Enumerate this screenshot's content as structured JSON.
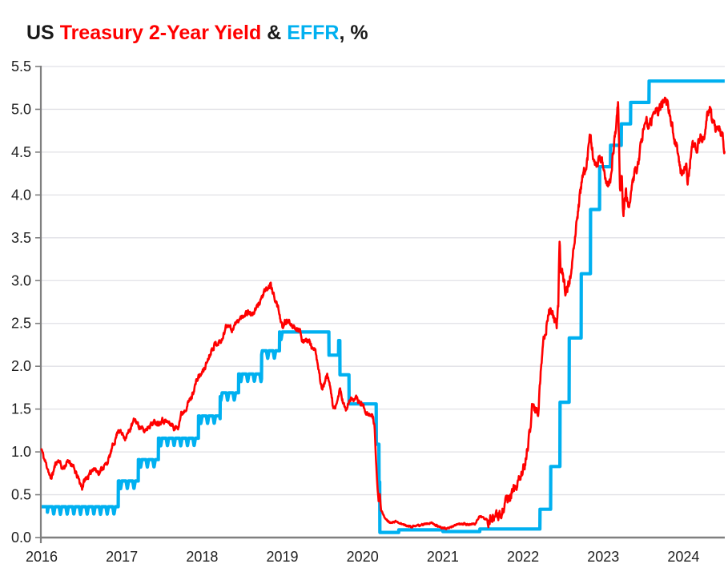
{
  "title": {
    "segments": [
      {
        "text": "US ",
        "color": "#1a1a1a"
      },
      {
        "text": "Treasury 2-Year Yield ",
        "color": "#ff0000"
      },
      {
        "text": "& ",
        "color": "#1a1a1a"
      },
      {
        "text": "EFFR",
        "color": "#00b0f0"
      },
      {
        "text": ", %",
        "color": "#1a1a1a"
      }
    ]
  },
  "colors": {
    "treasury_line": "#ff0000",
    "effr_line": "#00b0f0",
    "gridline": "#e1e1e6",
    "axis": "#7f7f7f",
    "tick_text": "#1f1f1f",
    "background": "#ffffff"
  },
  "chart_data": {
    "type": "line",
    "title": "US Treasury 2-Year Yield & EFFR, %",
    "xlabel": "",
    "ylabel": "%",
    "xlim": [
      2016,
      2024.515
    ],
    "ylim": [
      0,
      5.5
    ],
    "grid": "horizontal",
    "legend_position": "colored-words-in-title",
    "x_tick_labels": [
      "2016",
      "2017",
      "2018",
      "2019",
      "2020",
      "2021",
      "2022",
      "2023",
      "2024"
    ],
    "x_tick_values": [
      2016,
      2017,
      2018,
      2019,
      2020,
      2021,
      2022,
      2023,
      2024
    ],
    "y_tick_labels": [
      "0.0",
      "0.5",
      "1.0",
      "1.5",
      "2.0",
      "2.5",
      "3.0",
      "3.5",
      "4.0",
      "4.5",
      "5.0",
      "5.5"
    ],
    "y_tick_values": [
      0,
      0.5,
      1.0,
      1.5,
      2.0,
      2.5,
      3.0,
      3.5,
      4.0,
      4.5,
      5.0,
      5.5
    ],
    "series": [
      {
        "name": "US Treasury 2-Year Yield",
        "color": "#ff0000",
        "line_width": 2.6,
        "style": "daily-jagged",
        "noise": {
          "seed": 11,
          "smooth": 0.55,
          "step": 0.004,
          "regions": [
            [
              2016.0,
              2020.14,
              0.05
            ],
            [
              2020.14,
              2021.55,
              0.016
            ],
            [
              2021.55,
              2024.6,
              0.1
            ]
          ]
        },
        "points": [
          [
            2016.0,
            1.03
          ],
          [
            2016.03,
            0.92
          ],
          [
            2016.08,
            0.8
          ],
          [
            2016.11,
            0.68
          ],
          [
            2016.14,
            0.75
          ],
          [
            2016.18,
            0.88
          ],
          [
            2016.22,
            0.9
          ],
          [
            2016.26,
            0.8
          ],
          [
            2016.3,
            0.85
          ],
          [
            2016.34,
            0.9
          ],
          [
            2016.38,
            0.85
          ],
          [
            2016.42,
            0.76
          ],
          [
            2016.46,
            0.68
          ],
          [
            2016.505,
            0.58
          ],
          [
            2016.53,
            0.66
          ],
          [
            2016.56,
            0.7
          ],
          [
            2016.6,
            0.73
          ],
          [
            2016.64,
            0.82
          ],
          [
            2016.68,
            0.78
          ],
          [
            2016.72,
            0.76
          ],
          [
            2016.76,
            0.82
          ],
          [
            2016.8,
            0.85
          ],
          [
            2016.84,
            0.92
          ],
          [
            2016.88,
            1.05
          ],
          [
            2016.92,
            1.15
          ],
          [
            2016.955,
            1.27
          ],
          [
            2017.0,
            1.21
          ],
          [
            2017.04,
            1.17
          ],
          [
            2017.08,
            1.22
          ],
          [
            2017.12,
            1.3
          ],
          [
            2017.16,
            1.38
          ],
          [
            2017.2,
            1.32
          ],
          [
            2017.24,
            1.28
          ],
          [
            2017.28,
            1.24
          ],
          [
            2017.33,
            1.3
          ],
          [
            2017.37,
            1.33
          ],
          [
            2017.42,
            1.35
          ],
          [
            2017.46,
            1.34
          ],
          [
            2017.5,
            1.38
          ],
          [
            2017.54,
            1.36
          ],
          [
            2017.58,
            1.34
          ],
          [
            2017.62,
            1.32
          ],
          [
            2017.66,
            1.27
          ],
          [
            2017.7,
            1.3
          ],
          [
            2017.74,
            1.44
          ],
          [
            2017.79,
            1.5
          ],
          [
            2017.83,
            1.58
          ],
          [
            2017.87,
            1.64
          ],
          [
            2017.92,
            1.8
          ],
          [
            2017.96,
            1.88
          ],
          [
            2018.0,
            1.92
          ],
          [
            2018.04,
            2.0
          ],
          [
            2018.08,
            2.1
          ],
          [
            2018.12,
            2.2
          ],
          [
            2018.16,
            2.26
          ],
          [
            2018.21,
            2.28
          ],
          [
            2018.25,
            2.3
          ],
          [
            2018.29,
            2.45
          ],
          [
            2018.33,
            2.5
          ],
          [
            2018.37,
            2.42
          ],
          [
            2018.42,
            2.5
          ],
          [
            2018.46,
            2.54
          ],
          [
            2018.5,
            2.58
          ],
          [
            2018.54,
            2.62
          ],
          [
            2018.58,
            2.64
          ],
          [
            2018.62,
            2.6
          ],
          [
            2018.67,
            2.66
          ],
          [
            2018.71,
            2.74
          ],
          [
            2018.75,
            2.82
          ],
          [
            2018.79,
            2.88
          ],
          [
            2018.835,
            2.92
          ],
          [
            2018.85,
            2.97
          ],
          [
            2018.88,
            2.86
          ],
          [
            2018.92,
            2.76
          ],
          [
            2018.96,
            2.64
          ],
          [
            2019.005,
            2.42
          ],
          [
            2019.03,
            2.52
          ],
          [
            2019.08,
            2.52
          ],
          [
            2019.13,
            2.48
          ],
          [
            2019.17,
            2.45
          ],
          [
            2019.22,
            2.42
          ],
          [
            2019.24,
            2.28
          ],
          [
            2019.28,
            2.32
          ],
          [
            2019.33,
            2.3
          ],
          [
            2019.37,
            2.22
          ],
          [
            2019.42,
            2.15
          ],
          [
            2019.45,
            1.95
          ],
          [
            2019.5,
            1.72
          ],
          [
            2019.53,
            1.82
          ],
          [
            2019.56,
            1.88
          ],
          [
            2019.6,
            1.74
          ],
          [
            2019.63,
            1.55
          ],
          [
            2019.66,
            1.48
          ],
          [
            2019.7,
            1.65
          ],
          [
            2019.715,
            1.75
          ],
          [
            2019.75,
            1.6
          ],
          [
            2019.79,
            1.48
          ],
          [
            2019.83,
            1.58
          ],
          [
            2019.87,
            1.63
          ],
          [
            2019.92,
            1.62
          ],
          [
            2019.96,
            1.58
          ],
          [
            2020.0,
            1.55
          ],
          [
            2020.04,
            1.48
          ],
          [
            2020.09,
            1.43
          ],
          [
            2020.13,
            1.4
          ],
          [
            2020.15,
            1.32
          ],
          [
            2020.165,
            0.95
          ],
          [
            2020.185,
            0.6
          ],
          [
            2020.2,
            0.42
          ],
          [
            2020.215,
            0.52
          ],
          [
            2020.23,
            0.32
          ],
          [
            2020.27,
            0.24
          ],
          [
            2020.31,
            0.2
          ],
          [
            2020.36,
            0.17
          ],
          [
            2020.42,
            0.19
          ],
          [
            2020.48,
            0.16
          ],
          [
            2020.54,
            0.14
          ],
          [
            2020.6,
            0.13
          ],
          [
            2020.67,
            0.13
          ],
          [
            2020.73,
            0.15
          ],
          [
            2020.79,
            0.16
          ],
          [
            2020.85,
            0.17
          ],
          [
            2020.9,
            0.15
          ],
          [
            2020.96,
            0.12
          ],
          [
            2021.02,
            0.11
          ],
          [
            2021.08,
            0.11
          ],
          [
            2021.14,
            0.14
          ],
          [
            2021.2,
            0.16
          ],
          [
            2021.27,
            0.16
          ],
          [
            2021.33,
            0.15
          ],
          [
            2021.4,
            0.16
          ],
          [
            2021.46,
            0.25
          ],
          [
            2021.52,
            0.22
          ],
          [
            2021.58,
            0.2
          ],
          [
            2021.64,
            0.22
          ],
          [
            2021.7,
            0.24
          ],
          [
            2021.75,
            0.32
          ],
          [
            2021.81,
            0.45
          ],
          [
            2021.87,
            0.52
          ],
          [
            2021.92,
            0.6
          ],
          [
            2021.97,
            0.72
          ],
          [
            2022.02,
            0.85
          ],
          [
            2022.06,
            1.05
          ],
          [
            2022.1,
            1.35
          ],
          [
            2022.115,
            1.58
          ],
          [
            2022.14,
            1.46
          ],
          [
            2022.17,
            1.52
          ],
          [
            2022.185,
            1.38
          ],
          [
            2022.22,
            1.95
          ],
          [
            2022.26,
            2.35
          ],
          [
            2022.3,
            2.5
          ],
          [
            2022.34,
            2.68
          ],
          [
            2022.38,
            2.6
          ],
          [
            2022.42,
            2.5
          ],
          [
            2022.44,
            2.68
          ],
          [
            2022.455,
            3.43
          ],
          [
            2022.47,
            3.15
          ],
          [
            2022.5,
            3.02
          ],
          [
            2022.53,
            2.86
          ],
          [
            2022.57,
            2.95
          ],
          [
            2022.61,
            3.22
          ],
          [
            2022.65,
            3.48
          ],
          [
            2022.69,
            3.85
          ],
          [
            2022.73,
            4.15
          ],
          [
            2022.77,
            4.3
          ],
          [
            2022.81,
            4.48
          ],
          [
            2022.835,
            4.71
          ],
          [
            2022.87,
            4.48
          ],
          [
            2022.9,
            4.32
          ],
          [
            2022.94,
            4.38
          ],
          [
            2022.98,
            4.42
          ],
          [
            2023.02,
            4.25
          ],
          [
            2023.06,
            4.12
          ],
          [
            2023.09,
            4.2
          ],
          [
            2023.13,
            4.55
          ],
          [
            2023.16,
            4.82
          ],
          [
            2023.185,
            5.06
          ],
          [
            2023.21,
            4.05
          ],
          [
            2023.23,
            4.2
          ],
          [
            2023.25,
            3.78
          ],
          [
            2023.28,
            4.05
          ],
          [
            2023.31,
            3.88
          ],
          [
            2023.34,
            3.98
          ],
          [
            2023.38,
            4.2
          ],
          [
            2023.42,
            4.32
          ],
          [
            2023.46,
            4.52
          ],
          [
            2023.5,
            4.75
          ],
          [
            2023.53,
            4.88
          ],
          [
            2023.57,
            4.75
          ],
          [
            2023.61,
            4.9
          ],
          [
            2023.65,
            5.0
          ],
          [
            2023.69,
            4.95
          ],
          [
            2023.73,
            5.08
          ],
          [
            2023.765,
            5.19
          ],
          [
            2023.8,
            5.05
          ],
          [
            2023.84,
            4.92
          ],
          [
            2023.88,
            4.68
          ],
          [
            2023.92,
            4.55
          ],
          [
            2023.96,
            4.3
          ],
          [
            2024.0,
            4.25
          ],
          [
            2024.03,
            4.35
          ],
          [
            2024.055,
            4.15
          ],
          [
            2024.09,
            4.45
          ],
          [
            2024.13,
            4.62
          ],
          [
            2024.17,
            4.55
          ],
          [
            2024.21,
            4.68
          ],
          [
            2024.25,
            4.6
          ],
          [
            2024.29,
            4.88
          ],
          [
            2024.33,
            5.0
          ],
          [
            2024.37,
            4.85
          ],
          [
            2024.41,
            4.72
          ],
          [
            2024.45,
            4.78
          ],
          [
            2024.49,
            4.7
          ],
          [
            2024.515,
            4.48
          ]
        ]
      },
      {
        "name": "EFFR",
        "color": "#00b0f0",
        "line_width": 4.2,
        "style": "step",
        "end_x": 2024.515,
        "month_end_dips": {
          "from": 2016.07,
          "to": 2019.0,
          "depth": 0.09
        },
        "points": [
          [
            2016.0,
            0.36
          ],
          [
            2016.955,
            0.66
          ],
          [
            2017.205,
            0.91
          ],
          [
            2017.455,
            1.16
          ],
          [
            2017.955,
            1.42
          ],
          [
            2018.225,
            1.69
          ],
          [
            2018.455,
            1.91
          ],
          [
            2018.74,
            2.18
          ],
          [
            2018.965,
            2.4
          ],
          [
            2019.58,
            2.13
          ],
          [
            2019.7,
            2.3
          ],
          [
            2019.717,
            1.9
          ],
          [
            2019.83,
            1.56
          ],
          [
            2020.17,
            1.09
          ],
          [
            2020.205,
            0.65
          ],
          [
            2020.215,
            0.06
          ],
          [
            2020.45,
            0.09
          ],
          [
            2021.0,
            0.07
          ],
          [
            2021.46,
            0.1
          ],
          [
            2022.21,
            0.33
          ],
          [
            2022.345,
            0.83
          ],
          [
            2022.46,
            1.58
          ],
          [
            2022.575,
            2.33
          ],
          [
            2022.725,
            3.08
          ],
          [
            2022.84,
            3.83
          ],
          [
            2022.955,
            4.33
          ],
          [
            2023.09,
            4.58
          ],
          [
            2023.225,
            4.83
          ],
          [
            2023.34,
            5.08
          ],
          [
            2023.57,
            5.33
          ]
        ]
      }
    ]
  }
}
